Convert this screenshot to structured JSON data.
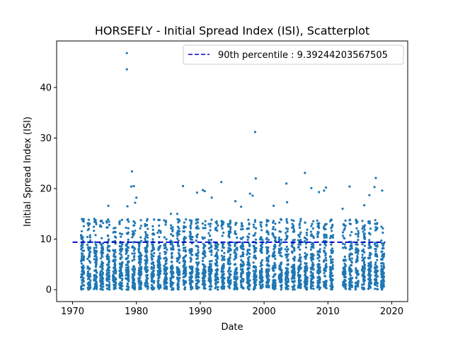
{
  "chart_data": {
    "type": "scatter",
    "title": "HORSEFLY - Initial Spread Index (ISI), Scatterplot",
    "xlabel": "Date",
    "ylabel": "Initial Spread Index (ISI)",
    "xlim": [
      1967.5,
      2022.5
    ],
    "ylim": [
      -2.35,
      49.2
    ],
    "xticks": [
      1970,
      1980,
      1990,
      2000,
      2010,
      2020
    ],
    "yticks": [
      0,
      10,
      20,
      30,
      40
    ],
    "legend_location": "upper right",
    "series": [
      {
        "kind": "points",
        "color": "#1f77b4",
        "year_start": 1971,
        "year_end": 2018,
        "missing_years": [
          2011
        ],
        "season_start": 0.33,
        "season_end": 0.8,
        "daily_range": [
          0,
          12
        ],
        "outliers": [
          {
            "x": 1978.5,
            "y": 46.8
          },
          {
            "x": 1978.5,
            "y": 43.6
          },
          {
            "x": 1979.3,
            "y": 23.4
          },
          {
            "x": 1979.2,
            "y": 20.4
          },
          {
            "x": 1979.6,
            "y": 20.5
          },
          {
            "x": 1980.0,
            "y": 18.2
          },
          {
            "x": 1979.8,
            "y": 17.2
          },
          {
            "x": 1978.6,
            "y": 16.5
          },
          {
            "x": 1975.6,
            "y": 16.6
          },
          {
            "x": 1987.3,
            "y": 20.5
          },
          {
            "x": 1990.4,
            "y": 19.7
          },
          {
            "x": 1990.7,
            "y": 19.5
          },
          {
            "x": 1993.3,
            "y": 21.3
          },
          {
            "x": 1989.5,
            "y": 19.2
          },
          {
            "x": 1991.8,
            "y": 18.2
          },
          {
            "x": 1998.6,
            "y": 31.2
          },
          {
            "x": 1998.7,
            "y": 22.0
          },
          {
            "x": 1997.8,
            "y": 19.0
          },
          {
            "x": 1998.2,
            "y": 18.6
          },
          {
            "x": 2001.5,
            "y": 16.6
          },
          {
            "x": 2003.5,
            "y": 21.0
          },
          {
            "x": 2003.6,
            "y": 17.3
          },
          {
            "x": 2006.4,
            "y": 23.1
          },
          {
            "x": 2007.4,
            "y": 20.1
          },
          {
            "x": 2008.6,
            "y": 19.3
          },
          {
            "x": 2009.4,
            "y": 19.6
          },
          {
            "x": 2009.7,
            "y": 20.2
          },
          {
            "x": 2013.4,
            "y": 20.4
          },
          {
            "x": 2017.5,
            "y": 22.1
          },
          {
            "x": 2017.3,
            "y": 20.3
          },
          {
            "x": 2016.5,
            "y": 18.7
          },
          {
            "x": 2018.5,
            "y": 19.6
          },
          {
            "x": 2015.7,
            "y": 16.7
          },
          {
            "x": 2012.3,
            "y": 16.0
          },
          {
            "x": 1996.4,
            "y": 16.4
          },
          {
            "x": 1995.5,
            "y": 17.5
          },
          {
            "x": 1985.4,
            "y": 15.0
          },
          {
            "x": 1986.4,
            "y": 15.0
          }
        ]
      },
      {
        "kind": "hline",
        "name": "90th percentile : 9.39244203567505",
        "y": 9.39244203567505,
        "x_from": 1970,
        "x_to": 2019,
        "color": "#0000cc",
        "style": "dashed"
      }
    ]
  }
}
